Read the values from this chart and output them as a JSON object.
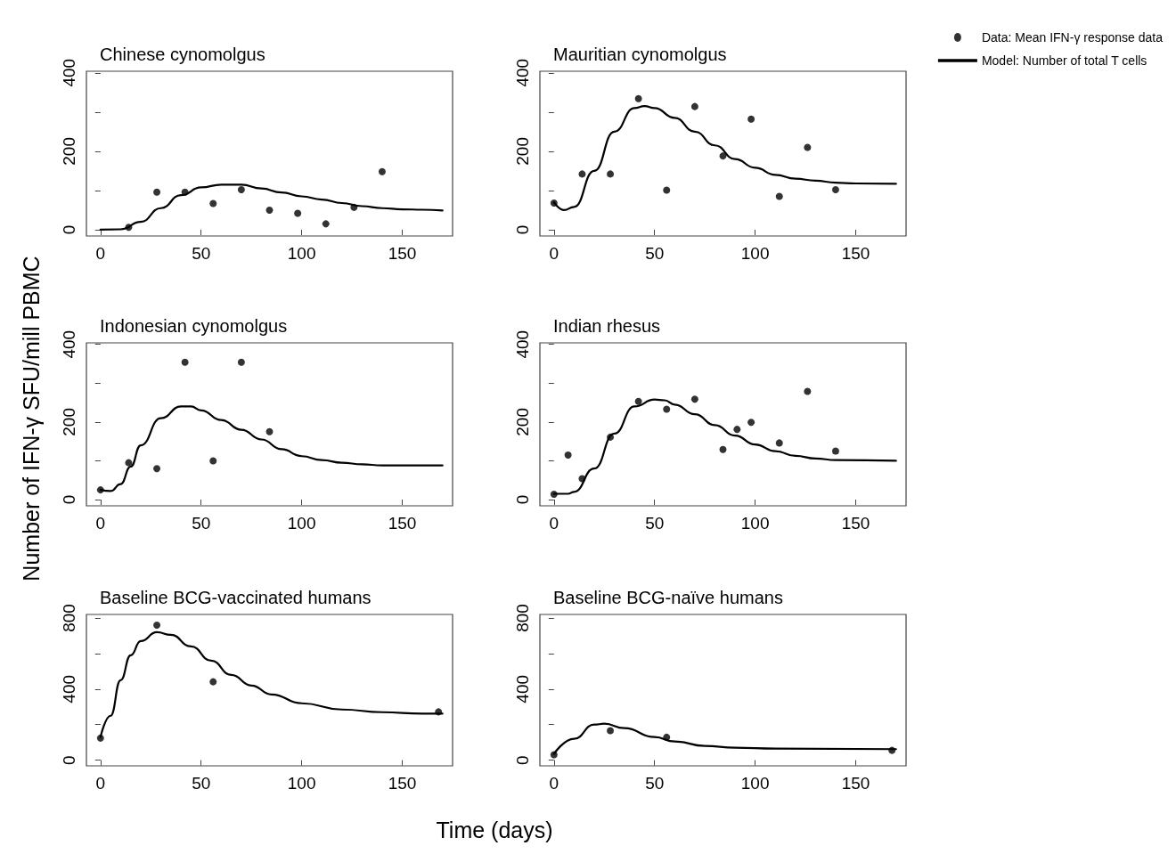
{
  "chart_data": [
    {
      "type": "scatter",
      "title": "Chinese cynomolgus",
      "ylabel": "Number of IFN-γ SFU/mill PBMC",
      "xlabel": "Time (days)",
      "xlim": [
        -7,
        175
      ],
      "xticks": [
        0,
        50,
        100,
        150
      ],
      "ylim": [
        -16,
        404
      ],
      "yticks": [
        0,
        {
          "value": 100,
          "label": null
        },
        200,
        {
          "value": 300,
          "label": null
        },
        400
      ],
      "grid": false,
      "legend": false,
      "series": [
        {
          "type": "scatter",
          "marker": "circle",
          "color": "#000000",
          "x": [
            14,
            28,
            42,
            56,
            70,
            84,
            98,
            112,
            126,
            140
          ],
          "values": [
            6,
            96,
            96,
            67,
            102,
            50,
            42,
            15,
            57,
            148
          ]
        },
        {
          "type": "line",
          "marker": "none",
          "line_style": "solid",
          "color": "#000000",
          "x": [
            0,
            10,
            20,
            30,
            40,
            50,
            60,
            70,
            80,
            90,
            100,
            110,
            120,
            130,
            140,
            150,
            160,
            170
          ],
          "values": [
            0,
            1,
            20,
            55,
            88,
            108,
            115,
            115,
            105,
            95,
            85,
            77,
            68,
            60,
            55,
            52,
            51,
            49
          ]
        }
      ]
    },
    {
      "type": "scatter",
      "title": "Mauritian cynomolgus",
      "xlim": [
        -7,
        175
      ],
      "xticks": [
        0,
        50,
        100,
        150
      ],
      "ylim": [
        -16,
        404
      ],
      "yticks": [
        0,
        {
          "value": 100,
          "label": null
        },
        200,
        {
          "value": 300,
          "label": null
        },
        400
      ],
      "grid": false,
      "legend": "top right",
      "series": [
        {
          "type": "scatter",
          "name": "Data: Mean IFN-γ response data",
          "marker": "circle",
          "color": "#000000",
          "x": [
            0,
            14,
            28,
            42,
            56,
            70,
            84,
            98,
            112,
            126,
            140
          ],
          "values": [
            68,
            142,
            142,
            334,
            101,
            314,
            188,
            282,
            85,
            210,
            102
          ]
        },
        {
          "type": "line",
          "name": "Model: Number of total T cells",
          "marker": "none",
          "line_style": "solid",
          "color": "#000000",
          "x": [
            0,
            5,
            10,
            20,
            30,
            40,
            45,
            50,
            60,
            70,
            80,
            90,
            100,
            110,
            120,
            130,
            140,
            150,
            170
          ],
          "values": [
            70,
            50,
            58,
            150,
            250,
            310,
            315,
            310,
            285,
            250,
            215,
            180,
            158,
            140,
            130,
            125,
            120,
            118,
            117
          ]
        }
      ]
    },
    {
      "type": "scatter",
      "title": "Indonesian cynomolgus",
      "xlim": [
        -7,
        175
      ],
      "xticks": [
        0,
        50,
        100,
        150
      ],
      "ylim": [
        -16,
        404
      ],
      "yticks": [
        0,
        {
          "value": 100,
          "label": null
        },
        200,
        {
          "value": 300,
          "label": null
        },
        400
      ],
      "grid": false,
      "legend": false,
      "series": [
        {
          "type": "scatter",
          "marker": "circle",
          "color": "#000000",
          "x": [
            0,
            14,
            28,
            42,
            56,
            70,
            84
          ],
          "values": [
            25,
            95,
            80,
            354,
            100,
            354,
            175
          ]
        },
        {
          "type": "line",
          "marker": "none",
          "line_style": "solid",
          "color": "#000000",
          "x": [
            0,
            5,
            10,
            15,
            20,
            30,
            40,
            45,
            50,
            60,
            70,
            80,
            90,
            100,
            110,
            120,
            130,
            140,
            170
          ],
          "values": [
            25,
            22,
            40,
            85,
            140,
            210,
            240,
            240,
            230,
            205,
            180,
            155,
            130,
            112,
            102,
            95,
            91,
            88,
            88
          ]
        }
      ]
    },
    {
      "type": "scatter",
      "title": "Indian rhesus",
      "xlim": [
        -7,
        175
      ],
      "xticks": [
        0,
        50,
        100,
        150
      ],
      "ylim": [
        -16,
        404
      ],
      "yticks": [
        0,
        {
          "value": 100,
          "label": null
        },
        200,
        {
          "value": 300,
          "label": null
        },
        400
      ],
      "grid": false,
      "legend": false,
      "series": [
        {
          "type": "scatter",
          "marker": "circle",
          "color": "#000000",
          "x": [
            0,
            7,
            14,
            28,
            42,
            56,
            70,
            84,
            91,
            98,
            112,
            126,
            140
          ],
          "values": [
            14,
            115,
            54,
            161,
            253,
            233,
            259,
            129,
            181,
            199,
            146,
            279,
            125
          ]
        },
        {
          "type": "line",
          "marker": "none",
          "line_style": "solid",
          "color": "#000000",
          "x": [
            0,
            7,
            10,
            20,
            30,
            40,
            50,
            55,
            60,
            70,
            80,
            90,
            100,
            110,
            120,
            130,
            140,
            170
          ],
          "values": [
            15,
            15,
            20,
            80,
            170,
            240,
            258,
            256,
            245,
            220,
            192,
            165,
            142,
            125,
            113,
            106,
            102,
            100
          ]
        }
      ]
    },
    {
      "type": "scatter",
      "title": "Baseline BCG-vaccinated humans",
      "xlim": [
        -7,
        175
      ],
      "xticks": [
        0,
        50,
        100,
        150
      ],
      "ylim": [
        -32,
        820
      ],
      "yticks": [
        0,
        {
          "value": 200,
          "label": null
        },
        400,
        {
          "value": 600,
          "label": null
        },
        800
      ],
      "grid": false,
      "legend": false,
      "series": [
        {
          "type": "scatter",
          "marker": "circle",
          "color": "#000000",
          "x": [
            0,
            28,
            56,
            168
          ],
          "values": [
            124,
            760,
            441,
            272
          ]
        },
        {
          "type": "line",
          "marker": "none",
          "line_style": "solid",
          "color": "#000000",
          "x": [
            0,
            5,
            10,
            15,
            20,
            28,
            35,
            45,
            55,
            65,
            75,
            85,
            100,
            120,
            140,
            160,
            170
          ],
          "values": [
            130,
            250,
            450,
            590,
            670,
            720,
            705,
            640,
            560,
            480,
            420,
            370,
            320,
            285,
            270,
            262,
            262
          ]
        }
      ]
    },
    {
      "type": "scatter",
      "title": "Baseline BCG-naïve humans",
      "xlim": [
        -7,
        175
      ],
      "xticks": [
        0,
        50,
        100,
        150
      ],
      "ylim": [
        -32,
        820
      ],
      "yticks": [
        0,
        {
          "value": 200,
          "label": null
        },
        400,
        {
          "value": 600,
          "label": null
        },
        800
      ],
      "grid": false,
      "legend": false,
      "series": [
        {
          "type": "scatter",
          "marker": "circle",
          "color": "#000000",
          "x": [
            0,
            28,
            56,
            168
          ],
          "values": [
            31,
            166,
            129,
            55
          ]
        },
        {
          "type": "line",
          "marker": "none",
          "line_style": "solid",
          "color": "#000000",
          "x": [
            0,
            10,
            20,
            25,
            35,
            50,
            60,
            75,
            90,
            110,
            170
          ],
          "values": [
            35,
            120,
            200,
            205,
            180,
            130,
            105,
            80,
            70,
            65,
            62
          ]
        }
      ]
    }
  ]
}
